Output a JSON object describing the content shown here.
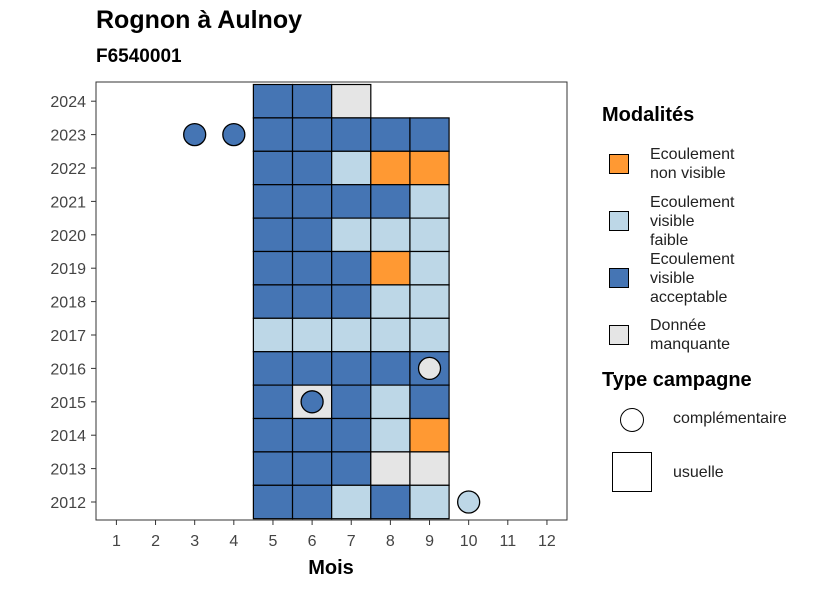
{
  "header": {
    "title": "Rognon à Aulnoy",
    "subtitle": "F6540001"
  },
  "legend": {
    "title": "Modalités",
    "items": [
      {
        "label_lines": [
          "Ecoulement",
          "non visible"
        ],
        "color": "#FF9933"
      },
      {
        "label_lines": [
          "Ecoulement",
          "visible",
          "faible"
        ],
        "color": "#BDD7E7"
      },
      {
        "label_lines": [
          "Ecoulement",
          "visible",
          "acceptable"
        ],
        "color": "#4575B4"
      },
      {
        "label_lines": [
          "Donnée",
          "manquante"
        ],
        "color": "#E5E5E5"
      }
    ]
  },
  "campaign_legend": {
    "title": "Type campagne",
    "items": [
      {
        "label": "complémentaire",
        "shape": "circle"
      },
      {
        "label": "usuelle",
        "shape": "square"
      }
    ]
  },
  "chart_data": {
    "type": "heatmap",
    "title": "Rognon à Aulnoy",
    "subtitle": "F6540001",
    "xlabel": "Mois",
    "ylabel": "",
    "x_ticks": [
      "1",
      "2",
      "3",
      "4",
      "5",
      "6",
      "7",
      "8",
      "9",
      "10",
      "11",
      "12"
    ],
    "y_ticks": [
      "2012",
      "2013",
      "2014",
      "2015",
      "2016",
      "2017",
      "2018",
      "2019",
      "2020",
      "2021",
      "2022",
      "2023",
      "2024"
    ],
    "colors": {
      "non_visible": "#FF9933",
      "faible": "#BDD7E7",
      "acceptable": "#4575B4",
      "manquante": "#E5E5E5"
    },
    "usuelle": [
      {
        "year": 2024,
        "month": 5,
        "value": "acceptable"
      },
      {
        "year": 2024,
        "month": 6,
        "value": "acceptable"
      },
      {
        "year": 2024,
        "month": 7,
        "value": "manquante"
      },
      {
        "year": 2023,
        "month": 5,
        "value": "acceptable"
      },
      {
        "year": 2023,
        "month": 6,
        "value": "acceptable"
      },
      {
        "year": 2023,
        "month": 7,
        "value": "acceptable"
      },
      {
        "year": 2023,
        "month": 8,
        "value": "acceptable"
      },
      {
        "year": 2023,
        "month": 9,
        "value": "acceptable"
      },
      {
        "year": 2022,
        "month": 5,
        "value": "acceptable"
      },
      {
        "year": 2022,
        "month": 6,
        "value": "acceptable"
      },
      {
        "year": 2022,
        "month": 7,
        "value": "faible"
      },
      {
        "year": 2022,
        "month": 8,
        "value": "non_visible"
      },
      {
        "year": 2022,
        "month": 9,
        "value": "non_visible"
      },
      {
        "year": 2021,
        "month": 5,
        "value": "acceptable"
      },
      {
        "year": 2021,
        "month": 6,
        "value": "acceptable"
      },
      {
        "year": 2021,
        "month": 7,
        "value": "acceptable"
      },
      {
        "year": 2021,
        "month": 8,
        "value": "acceptable"
      },
      {
        "year": 2021,
        "month": 9,
        "value": "faible"
      },
      {
        "year": 2020,
        "month": 5,
        "value": "acceptable"
      },
      {
        "year": 2020,
        "month": 6,
        "value": "acceptable"
      },
      {
        "year": 2020,
        "month": 7,
        "value": "faible"
      },
      {
        "year": 2020,
        "month": 8,
        "value": "faible"
      },
      {
        "year": 2020,
        "month": 9,
        "value": "faible"
      },
      {
        "year": 2019,
        "month": 5,
        "value": "acceptable"
      },
      {
        "year": 2019,
        "month": 6,
        "value": "acceptable"
      },
      {
        "year": 2019,
        "month": 7,
        "value": "acceptable"
      },
      {
        "year": 2019,
        "month": 8,
        "value": "non_visible"
      },
      {
        "year": 2019,
        "month": 9,
        "value": "faible"
      },
      {
        "year": 2018,
        "month": 5,
        "value": "acceptable"
      },
      {
        "year": 2018,
        "month": 6,
        "value": "acceptable"
      },
      {
        "year": 2018,
        "month": 7,
        "value": "acceptable"
      },
      {
        "year": 2018,
        "month": 8,
        "value": "faible"
      },
      {
        "year": 2018,
        "month": 9,
        "value": "faible"
      },
      {
        "year": 2017,
        "month": 5,
        "value": "faible"
      },
      {
        "year": 2017,
        "month": 6,
        "value": "faible"
      },
      {
        "year": 2017,
        "month": 7,
        "value": "faible"
      },
      {
        "year": 2017,
        "month": 8,
        "value": "faible"
      },
      {
        "year": 2017,
        "month": 9,
        "value": "faible"
      },
      {
        "year": 2016,
        "month": 5,
        "value": "acceptable"
      },
      {
        "year": 2016,
        "month": 6,
        "value": "acceptable"
      },
      {
        "year": 2016,
        "month": 7,
        "value": "acceptable"
      },
      {
        "year": 2016,
        "month": 8,
        "value": "acceptable"
      },
      {
        "year": 2016,
        "month": 9,
        "value": "acceptable"
      },
      {
        "year": 2015,
        "month": 5,
        "value": "acceptable"
      },
      {
        "year": 2015,
        "month": 6,
        "value": "manquante"
      },
      {
        "year": 2015,
        "month": 7,
        "value": "acceptable"
      },
      {
        "year": 2015,
        "month": 8,
        "value": "faible"
      },
      {
        "year": 2015,
        "month": 9,
        "value": "acceptable"
      },
      {
        "year": 2014,
        "month": 5,
        "value": "acceptable"
      },
      {
        "year": 2014,
        "month": 6,
        "value": "acceptable"
      },
      {
        "year": 2014,
        "month": 7,
        "value": "acceptable"
      },
      {
        "year": 2014,
        "month": 8,
        "value": "faible"
      },
      {
        "year": 2014,
        "month": 9,
        "value": "non_visible"
      },
      {
        "year": 2013,
        "month": 5,
        "value": "acceptable"
      },
      {
        "year": 2013,
        "month": 6,
        "value": "acceptable"
      },
      {
        "year": 2013,
        "month": 7,
        "value": "acceptable"
      },
      {
        "year": 2013,
        "month": 8,
        "value": "manquante"
      },
      {
        "year": 2013,
        "month": 9,
        "value": "manquante"
      },
      {
        "year": 2012,
        "month": 5,
        "value": "acceptable"
      },
      {
        "year": 2012,
        "month": 6,
        "value": "acceptable"
      },
      {
        "year": 2012,
        "month": 7,
        "value": "faible"
      },
      {
        "year": 2012,
        "month": 8,
        "value": "acceptable"
      },
      {
        "year": 2012,
        "month": 9,
        "value": "faible"
      }
    ],
    "complementaire": [
      {
        "year": 2023,
        "month": 3,
        "value": "acceptable"
      },
      {
        "year": 2023,
        "month": 4,
        "value": "acceptable"
      },
      {
        "year": 2016,
        "month": 9,
        "value": "manquante"
      },
      {
        "year": 2015,
        "month": 6,
        "value": "acceptable"
      },
      {
        "year": 2012,
        "month": 10,
        "value": "faible"
      }
    ]
  }
}
